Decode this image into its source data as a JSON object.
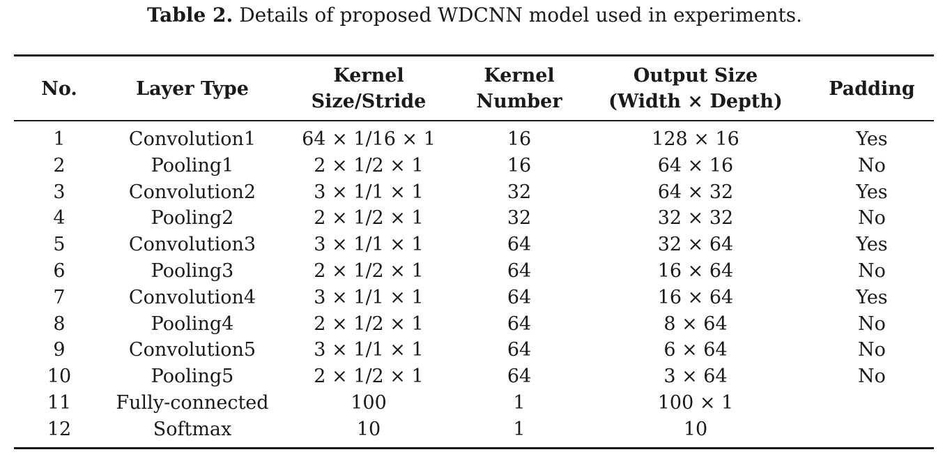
{
  "caption": {
    "label": "Table 2.",
    "text": "Details of proposed WDCNN model used in experiments."
  },
  "table": {
    "headers": [
      [
        "No."
      ],
      [
        "Layer Type"
      ],
      [
        "Kernel",
        "Size/Stride"
      ],
      [
        "Kernel",
        "Number"
      ],
      [
        "Output Size",
        "(Width × Depth)"
      ],
      [
        "Padding"
      ]
    ],
    "rows": [
      [
        "1",
        "Convolution1",
        "64 × 1/16 × 1",
        "16",
        "128 × 16",
        "Yes"
      ],
      [
        "2",
        "Pooling1",
        "2 × 1/2 × 1",
        "16",
        "64 × 16",
        "No"
      ],
      [
        "3",
        "Convolution2",
        "3 × 1/1 × 1",
        "32",
        "64 × 32",
        "Yes"
      ],
      [
        "4",
        "Pooling2",
        "2 × 1/2 × 1",
        "32",
        "32 × 32",
        "No"
      ],
      [
        "5",
        "Convolution3",
        "3 × 1/1 × 1",
        "64",
        "32 × 64",
        "Yes"
      ],
      [
        "6",
        "Pooling3",
        "2 × 1/2 × 1",
        "64",
        "16 × 64",
        "No"
      ],
      [
        "7",
        "Convolution4",
        "3 × 1/1 × 1",
        "64",
        "16 × 64",
        "Yes"
      ],
      [
        "8",
        "Pooling4",
        "2 × 1/2 × 1",
        "64",
        "8 × 64",
        "No"
      ],
      [
        "9",
        "Convolution5",
        "3 × 1/1 × 1",
        "64",
        "6 × 64",
        "No"
      ],
      [
        "10",
        "Pooling5",
        "2 × 1/2 × 1",
        "64",
        "3 × 64",
        "No"
      ],
      [
        "11",
        "Fully-connected",
        "100",
        "1",
        "100 × 1",
        ""
      ],
      [
        "12",
        "Softmax",
        "10",
        "1",
        "10",
        ""
      ]
    ]
  }
}
